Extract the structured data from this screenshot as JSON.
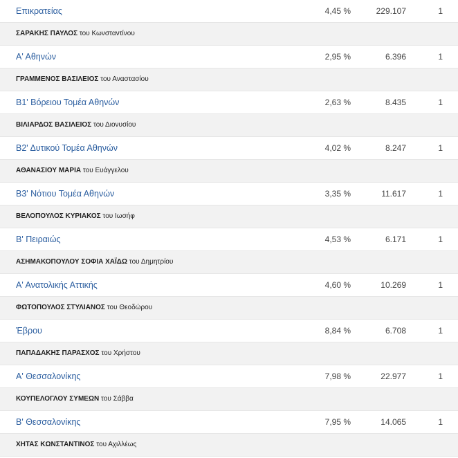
{
  "rows": [
    {
      "type": "district",
      "name": "Επικρατείας",
      "pct": "4,45 %",
      "votes": "229.107",
      "seats": "1"
    },
    {
      "type": "person",
      "name": "ΣΑΡΑΚΗΣ ΠΑΥΛΟΣ",
      "of": "του Κωνσταντίνου"
    },
    {
      "type": "district",
      "name": "Α' Αθηνών",
      "pct": "2,95 %",
      "votes": "6.396",
      "seats": "1"
    },
    {
      "type": "person",
      "name": "ΓΡΑΜΜΕΝΟΣ ΒΑΣΙΛΕΙΟΣ",
      "of": "του Αναστασίου"
    },
    {
      "type": "district",
      "name": "Β1' Βόρειου Τομέα Αθηνών",
      "pct": "2,63 %",
      "votes": "8.435",
      "seats": "1"
    },
    {
      "type": "person",
      "name": "ΒΙΛΙΑΡΔΟΣ ΒΑΣΙΛΕΙΟΣ",
      "of": "του Διονυσίου"
    },
    {
      "type": "district",
      "name": "Β2' Δυτικού Τομέα Αθηνών",
      "pct": "4,02 %",
      "votes": "8.247",
      "seats": "1"
    },
    {
      "type": "person",
      "name": "ΑΘΑΝΑΣΙΟΥ ΜΑΡΙΑ",
      "of": "του Ευάγγελου"
    },
    {
      "type": "district",
      "name": "Β3' Νότιου Τομέα Αθηνών",
      "pct": "3,35 %",
      "votes": "11.617",
      "seats": "1"
    },
    {
      "type": "person",
      "name": "ΒΕΛΟΠΟΥΛΟΣ ΚΥΡΙΑΚΟΣ",
      "of": "του Ιωσήφ"
    },
    {
      "type": "district",
      "name": "Β' Πειραιώς",
      "pct": "4,53 %",
      "votes": "6.171",
      "seats": "1"
    },
    {
      "type": "person",
      "name": "ΑΣΗΜΑΚΟΠΟΥΛΟΥ ΣΟΦΙΑ ΧΑΪΔΩ",
      "of": "του Δημητρίου"
    },
    {
      "type": "district",
      "name": "Α' Ανατολικής Αττικής",
      "pct": "4,60 %",
      "votes": "10.269",
      "seats": "1"
    },
    {
      "type": "person",
      "name": "ΦΩΤΟΠΟΥΛΟΣ ΣΤΥΛΙΑΝΟΣ",
      "of": "του Θεοδώρου"
    },
    {
      "type": "district",
      "name": "Έβρου",
      "pct": "8,84 %",
      "votes": "6.708",
      "seats": "1"
    },
    {
      "type": "person",
      "name": "ΠΑΠΑΔΑΚΗΣ ΠΑΡΑΣΧΟΣ",
      "of": "του Χρήστου"
    },
    {
      "type": "district",
      "name": "Α' Θεσσαλονίκης",
      "pct": "7,98 %",
      "votes": "22.977",
      "seats": "1"
    },
    {
      "type": "person",
      "name": "ΚΟΥΠΕΛΟΓΛΟΥ ΣΥΜΕΩΝ",
      "of": "του Σάββα"
    },
    {
      "type": "district",
      "name": "Β' Θεσσαλονίκης",
      "pct": "7,95 %",
      "votes": "14.065",
      "seats": "1"
    },
    {
      "type": "person",
      "name": "ΧΗΤΑΣ ΚΩΝΣΤΑΝΤΙΝΟΣ",
      "of": "του Αχιλλέως"
    }
  ]
}
